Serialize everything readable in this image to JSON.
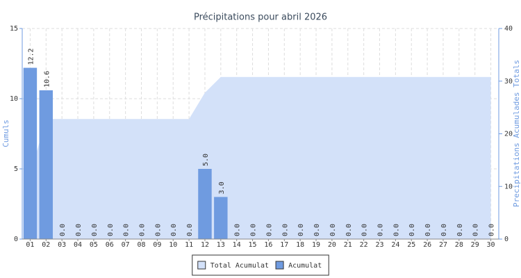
{
  "chart_data": {
    "type": "bar",
    "title": "Précipitations pour abril 2026",
    "y_label": "Cumuls",
    "y2_label": "Precipitations Acumulades Totals",
    "categories": [
      "01",
      "02",
      "03",
      "04",
      "05",
      "06",
      "07",
      "08",
      "09",
      "10",
      "11",
      "12",
      "13",
      "14",
      "15",
      "16",
      "17",
      "18",
      "19",
      "20",
      "21",
      "22",
      "23",
      "24",
      "25",
      "26",
      "27",
      "28",
      "29",
      "30"
    ],
    "series": [
      {
        "name": "Total Acumulat",
        "type": "area",
        "axis": "y2",
        "color": "#d3e1f9",
        "values": [
          12.2,
          22.8,
          22.8,
          22.8,
          22.8,
          22.8,
          22.8,
          22.8,
          22.8,
          22.8,
          22.8,
          27.8,
          30.8,
          30.8,
          30.8,
          30.8,
          30.8,
          30.8,
          30.8,
          30.8,
          30.8,
          30.8,
          30.8,
          30.8,
          30.8,
          30.8,
          30.8,
          30.8,
          30.8,
          30.8
        ]
      },
      {
        "name": "Acumulat",
        "type": "bar",
        "color": "#6f9be0",
        "values": [
          12.2,
          10.6,
          0,
          0,
          0,
          0,
          0,
          0,
          0,
          0,
          0,
          5,
          3,
          0,
          0,
          0,
          0,
          0,
          0,
          0,
          0,
          0,
          0,
          0,
          0,
          0,
          0,
          0,
          0,
          0
        ],
        "value_labels": [
          "12.2",
          "10.6",
          "0.0",
          "0.0",
          "0.0",
          "0.0",
          "0.0",
          "0.0",
          "0.0",
          "0.0",
          "0.0",
          "5.0",
          "3.0",
          "0.0",
          "0.0",
          "0.0",
          "0.0",
          "0.0",
          "0.0",
          "0.0",
          "0.0",
          "0.0",
          "0.0",
          "0.0",
          "0.0",
          "0.0",
          "0.0",
          "0.0",
          "0.0",
          "0.0"
        ]
      }
    ],
    "ylim": [
      0,
      15
    ],
    "yticks": [
      0,
      5,
      10,
      15
    ],
    "y2lim": [
      0,
      40
    ],
    "y2ticks": [
      0,
      10,
      20,
      30,
      40
    ],
    "grid": true,
    "legend": "bottom"
  }
}
